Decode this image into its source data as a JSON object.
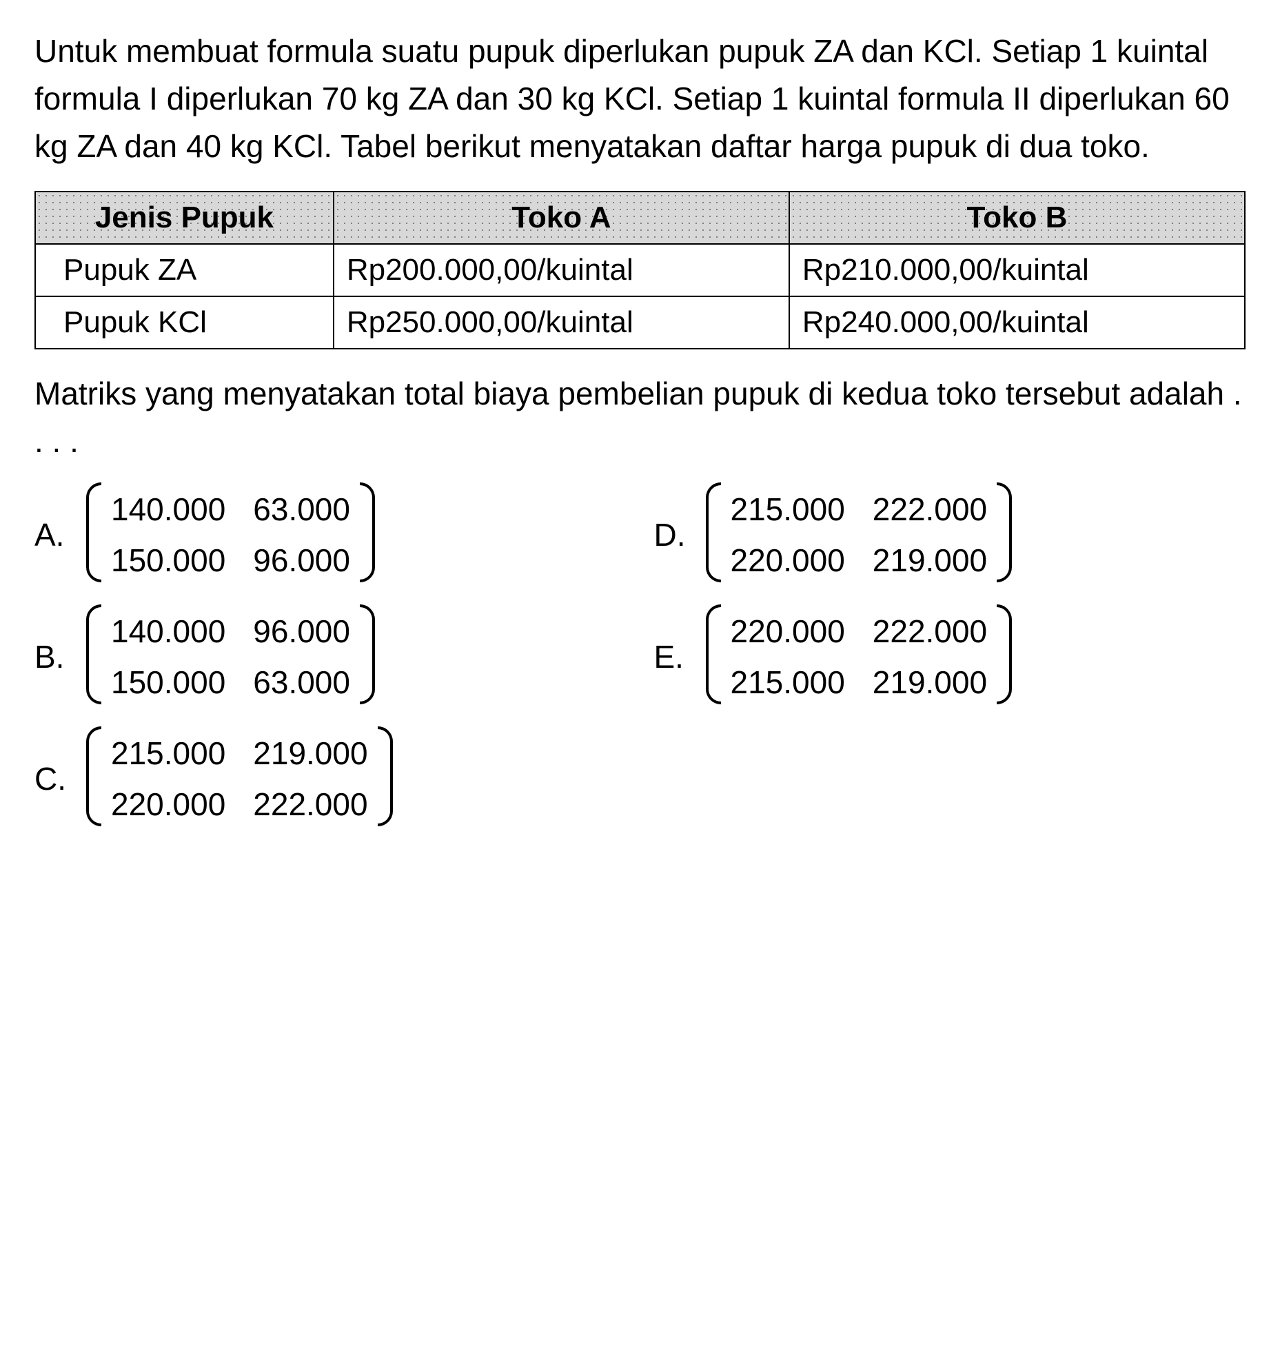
{
  "prompt": "Untuk membuat formula suatu pupuk diperlukan pupuk ZA dan KCl. Setiap 1 kuintal formula I diperlukan 70 kg ZA dan 30 kg KCl. Setiap 1 kuintal formula II diperlukan 60 kg ZA dan 40 kg KCl. Tabel berikut menyatakan daftar harga pupuk di dua toko.",
  "table": {
    "headers": {
      "col0": "Jenis Pupuk",
      "col1": "Toko A",
      "col2": "Toko B"
    },
    "rows": [
      {
        "name": "Pupuk ZA",
        "a": "Rp200.000,00/kuintal",
        "b": "Rp210.000,00/kuintal"
      },
      {
        "name": "Pupuk KCl",
        "a": "Rp250.000,00/kuintal",
        "b": "Rp240.000,00/kuintal"
      }
    ]
  },
  "question": "Matriks yang menyatakan total biaya pembelian pupuk di kedua toko tersebut adalah . . . .",
  "options": {
    "A": {
      "letter": "A.",
      "m": [
        "140.000",
        "63.000",
        "150.000",
        "96.000"
      ]
    },
    "B": {
      "letter": "B.",
      "m": [
        "140.000",
        "96.000",
        "150.000",
        "63.000"
      ]
    },
    "C": {
      "letter": "C.",
      "m": [
        "215.000",
        "219.000",
        "220.000",
        "222.000"
      ]
    },
    "D": {
      "letter": "D.",
      "m": [
        "215.000",
        "222.000",
        "220.000",
        "219.000"
      ]
    },
    "E": {
      "letter": "E.",
      "m": [
        "220.000",
        "222.000",
        "215.000",
        "219.000"
      ]
    }
  },
  "style": {
    "text_color": "#000000",
    "background_color": "#ffffff",
    "header_bg": "#d8d8d8",
    "border_color": "#000000",
    "font_size_body": 46,
    "font_size_table": 44
  }
}
